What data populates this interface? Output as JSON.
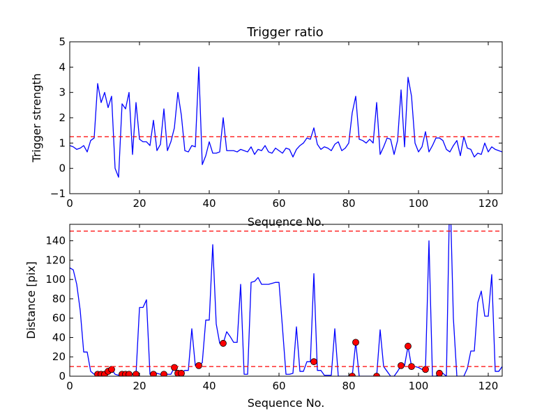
{
  "chart_data": [
    {
      "type": "line",
      "title": "Trigger ratio",
      "xlabel": "Sequence No.",
      "ylabel": "Trigger strength",
      "xlim": [
        0,
        124
      ],
      "ylim": [
        -1,
        5
      ],
      "xticks": [
        0,
        20,
        40,
        60,
        80,
        100,
        120
      ],
      "yticks": [
        -1,
        0,
        1,
        2,
        3,
        4,
        5
      ],
      "xtick_labels": [
        "0",
        "20",
        "40",
        "60",
        "80",
        "100",
        "120"
      ],
      "ytick_labels": [
        "−1",
        "0",
        "1",
        "2",
        "3",
        "4",
        "5"
      ],
      "grid": false,
      "series": [
        {
          "style": "solid",
          "color": "#0000ff",
          "x": [
            0,
            1,
            2,
            3,
            4,
            5,
            6,
            7,
            8,
            9,
            10,
            11,
            12,
            13,
            14,
            15,
            16,
            17,
            18,
            19,
            20,
            21,
            22,
            23,
            24,
            25,
            26,
            27,
            28,
            29,
            30,
            31,
            32,
            33,
            34,
            35,
            36,
            37,
            38,
            39,
            40,
            41,
            42,
            43,
            44,
            45,
            46,
            47,
            48,
            49,
            50,
            51,
            52,
            53,
            54,
            55,
            56,
            57,
            58,
            59,
            60,
            61,
            62,
            63,
            64,
            65,
            66,
            67,
            68,
            69,
            70,
            71,
            72,
            73,
            74,
            75,
            76,
            77,
            78,
            79,
            80,
            81,
            82,
            83,
            84,
            85,
            86,
            87,
            88,
            89,
            90,
            91,
            92,
            93,
            94,
            95,
            96,
            97,
            98,
            99,
            100,
            101,
            102,
            103,
            104,
            105,
            106,
            107,
            108,
            109,
            110,
            111,
            112,
            113,
            114,
            115,
            116,
            117,
            118,
            119,
            120,
            121,
            122,
            123,
            124
          ],
          "y": [
            0.9,
            0.85,
            0.75,
            0.8,
            0.9,
            0.65,
            1.1,
            1.2,
            3.35,
            2.6,
            3.0,
            2.4,
            2.85,
            0.0,
            -0.35,
            2.55,
            2.35,
            3.0,
            0.55,
            2.6,
            1.15,
            1.05,
            1.05,
            0.9,
            1.9,
            0.7,
            0.95,
            2.35,
            0.7,
            1.05,
            1.6,
            3.0,
            2.1,
            0.7,
            0.65,
            0.9,
            0.85,
            4.0,
            0.15,
            0.5,
            1.05,
            0.6,
            0.6,
            0.65,
            2.0,
            0.7,
            0.7,
            0.7,
            0.65,
            0.75,
            0.7,
            0.65,
            0.85,
            0.55,
            0.75,
            0.7,
            0.9,
            0.65,
            0.6,
            0.8,
            0.7,
            0.6,
            0.8,
            0.75,
            0.45,
            0.75,
            0.9,
            1.0,
            1.2,
            1.15,
            1.6,
            0.95,
            0.75,
            0.85,
            0.8,
            0.7,
            0.95,
            1.05,
            0.7,
            0.8,
            1.0,
            2.2,
            2.85,
            1.15,
            1.1,
            1.0,
            1.15,
            1.0,
            2.6,
            0.55,
            0.85,
            1.2,
            1.15,
            0.55,
            1.1,
            3.1,
            0.85,
            3.6,
            2.85,
            1.0,
            0.65,
            0.85,
            1.45,
            0.65,
            0.9,
            1.2,
            1.2,
            1.1,
            0.75,
            0.65,
            0.9,
            1.1,
            0.5,
            1.25,
            0.8,
            0.75,
            0.45,
            0.6,
            0.55,
            1.0,
            0.65,
            0.85,
            0.75,
            0.7,
            0.65
          ]
        },
        {
          "style": "dashed",
          "color": "#ff0000",
          "x": [
            0,
            124
          ],
          "y": [
            1.25,
            1.25
          ]
        }
      ]
    },
    {
      "type": "line",
      "title": "",
      "xlabel": "Sequence No.",
      "ylabel": "Distance [pix]",
      "xlim": [
        0,
        124
      ],
      "ylim": [
        0,
        157
      ],
      "xticks": [
        0,
        20,
        40,
        60,
        80,
        100,
        120
      ],
      "yticks": [
        0,
        20,
        40,
        60,
        80,
        100,
        120,
        140
      ],
      "xtick_labels": [
        "0",
        "20",
        "40",
        "60",
        "80",
        "100",
        "120"
      ],
      "ytick_labels": [
        "0",
        "20",
        "40",
        "60",
        "80",
        "100",
        "120",
        "140"
      ],
      "grid": false,
      "series": [
        {
          "style": "solid",
          "color": "#0000ff",
          "x": [
            0,
            1,
            2,
            3,
            4,
            5,
            6,
            7,
            8,
            9,
            10,
            11,
            12,
            13,
            14,
            15,
            16,
            17,
            18,
            19,
            20,
            21,
            22,
            23,
            24,
            25,
            26,
            27,
            28,
            29,
            30,
            31,
            32,
            33,
            34,
            35,
            36,
            37,
            38,
            39,
            40,
            41,
            42,
            43,
            44,
            45,
            46,
            47,
            48,
            49,
            50,
            51,
            52,
            53,
            54,
            55,
            56,
            57,
            58,
            59,
            60,
            61,
            62,
            63,
            64,
            65,
            66,
            67,
            68,
            69,
            70,
            71,
            72,
            73,
            74,
            75,
            76,
            77,
            78,
            79,
            80,
            81,
            82,
            83,
            84,
            85,
            86,
            87,
            88,
            89,
            90,
            91,
            92,
            93,
            94,
            95,
            96,
            97,
            98,
            99,
            100,
            101,
            102,
            103,
            104,
            105,
            106,
            107,
            108,
            109,
            110,
            111,
            112,
            113,
            114,
            115,
            116,
            117,
            118,
            119,
            120,
            121,
            122,
            123,
            124
          ],
          "y": [
            112,
            110,
            95,
            68,
            25,
            25,
            5,
            2,
            2,
            2,
            2,
            5,
            7,
            2,
            1,
            2,
            2,
            2,
            2,
            2,
            71,
            71,
            79,
            2,
            2,
            3,
            2,
            3,
            2,
            2,
            9,
            3,
            3,
            6,
            6,
            49,
            11,
            11,
            14,
            58,
            58,
            136,
            54,
            34,
            34,
            46,
            41,
            35,
            35,
            95,
            2,
            2,
            97,
            98,
            102,
            95,
            95,
            95,
            96,
            97,
            97,
            50,
            2,
            2,
            3,
            51,
            5,
            5,
            15,
            15,
            106,
            6,
            6,
            1,
            1,
            1,
            49,
            0,
            0,
            0,
            0,
            0,
            35,
            0,
            0,
            0,
            0,
            0,
            0,
            48,
            10,
            5,
            0,
            0,
            5,
            11,
            11,
            31,
            10,
            10,
            9,
            7,
            7,
            140,
            0,
            0,
            3,
            3,
            0,
            200,
            60,
            0,
            0,
            0,
            8,
            26,
            26,
            76,
            88,
            62,
            62,
            105,
            5,
            5,
            10
          ]
        },
        {
          "style": "markers",
          "color": "#ff0000",
          "x": [
            8,
            9,
            10,
            11,
            12,
            15,
            16,
            17,
            19,
            24,
            27,
            30,
            31,
            32,
            37,
            44,
            70,
            81,
            82,
            88,
            95,
            97,
            98,
            102,
            106
          ],
          "y": [
            2,
            2,
            2,
            5,
            7,
            2,
            2,
            2,
            2,
            2,
            2,
            9,
            3,
            3,
            11,
            34,
            15,
            0,
            35,
            0,
            11,
            31,
            10,
            7,
            3
          ]
        },
        {
          "style": "dashed",
          "color": "#ff0000",
          "x": [
            0,
            124
          ],
          "y": [
            150,
            150
          ]
        },
        {
          "style": "dashed",
          "color": "#ff0000",
          "x": [
            0,
            124
          ],
          "y": [
            10,
            10
          ]
        }
      ]
    }
  ]
}
